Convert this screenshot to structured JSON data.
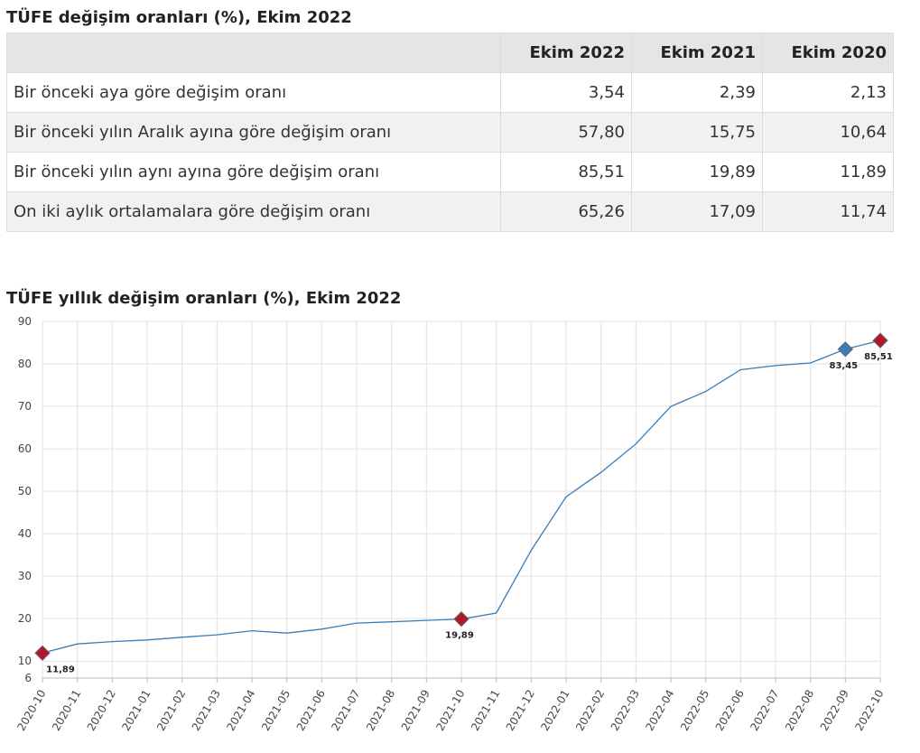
{
  "table": {
    "title": "TÜFE değişim oranları (%), Ekim 2022",
    "headers": [
      "",
      "Ekim 2022",
      "Ekim 2021",
      "Ekim 2020"
    ],
    "rows": [
      {
        "label": "Bir önceki aya göre değişim oranı",
        "values": [
          "3,54",
          "2,39",
          "2,13"
        ]
      },
      {
        "label": "Bir önceki yılın Aralık ayına göre değişim oranı",
        "values": [
          "57,80",
          "15,75",
          "10,64"
        ]
      },
      {
        "label": "Bir önceki yılın aynı ayına göre değişim oranı",
        "values": [
          "85,51",
          "19,89",
          "11,89"
        ]
      },
      {
        "label": "On iki aylık ortalamalara göre değişim oranı",
        "values": [
          "65,26",
          "17,09",
          "11,74"
        ]
      }
    ]
  },
  "chart_data": {
    "type": "line",
    "title": "TÜFE yıllık değişim oranları (%), Ekim 2022",
    "xlabel": "",
    "ylabel": "",
    "ylim": [
      6,
      90
    ],
    "yticks": [
      6,
      10,
      20,
      30,
      40,
      50,
      60,
      70,
      80,
      90
    ],
    "grid": true,
    "categories": [
      "2020-10",
      "2020-11",
      "2020-12",
      "2021-01",
      "2021-02",
      "2021-03",
      "2021-04",
      "2021-05",
      "2021-06",
      "2021-07",
      "2021-08",
      "2021-09",
      "2021-10",
      "2021-11",
      "2021-12",
      "2022-01",
      "2022-02",
      "2022-03",
      "2022-04",
      "2022-05",
      "2022-06",
      "2022-07",
      "2022-08",
      "2022-09",
      "2022-10"
    ],
    "values": [
      11.89,
      14.03,
      14.6,
      14.97,
      15.61,
      16.19,
      17.14,
      16.59,
      17.53,
      18.95,
      19.25,
      19.58,
      19.89,
      21.31,
      36.08,
      48.69,
      54.44,
      61.14,
      69.97,
      73.5,
      78.62,
      79.6,
      80.21,
      83.45,
      85.51
    ],
    "line_color": "#3a7cb8",
    "markers": [
      {
        "index": 0,
        "label": "11,89",
        "color": "#b2182b"
      },
      {
        "index": 12,
        "label": "19,89",
        "color": "#b2182b"
      },
      {
        "index": 23,
        "label": "83,45",
        "color": "#3a7cb8"
      },
      {
        "index": 24,
        "label": "85,51",
        "color": "#b2182b"
      }
    ]
  }
}
